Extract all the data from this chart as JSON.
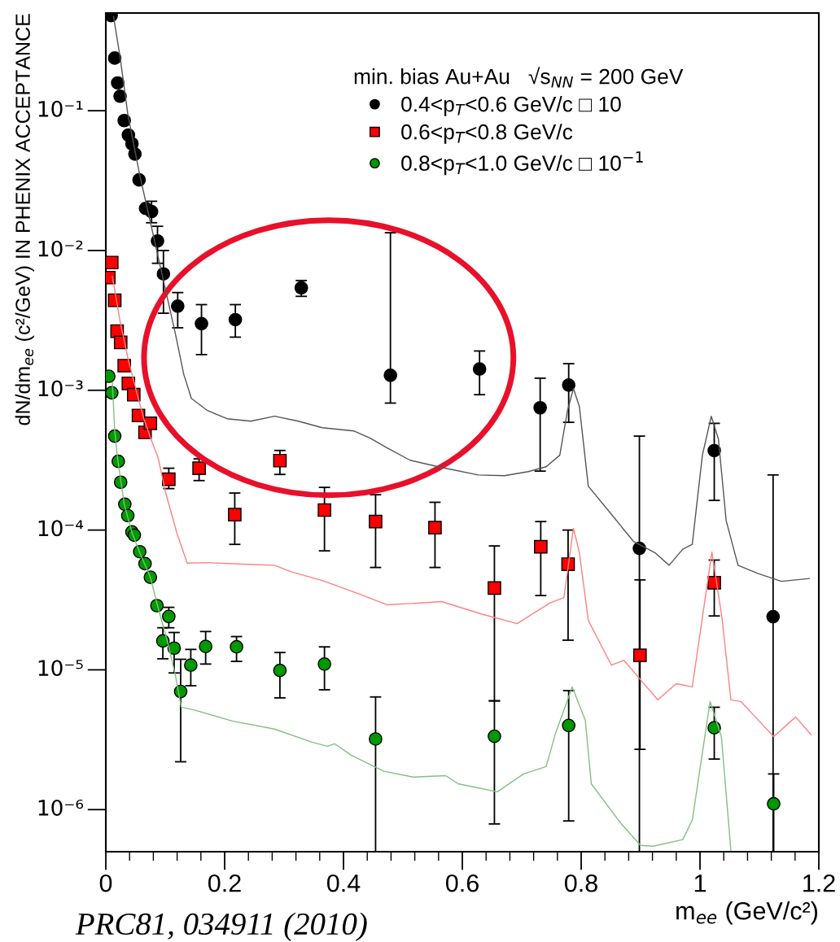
{
  "chart_data": {
    "type": "scatter",
    "xlabel": "m$_{ee}$ (GeV/c²)",
    "ylabel": "dN/dm$_{ee}$ (c²/GeV) IN PHENIX ACCEPTANCE",
    "legend_title": "min. bias Au+Au   √s$_{NN}$ = 200 GeV",
    "annotations": [
      "PRC81, 034911 (2010)"
    ],
    "log": "y",
    "grid": false,
    "legend": "top right",
    "xlim": [
      0,
      1.2
    ],
    "xticks": [
      0,
      0.2,
      0.4,
      0.6,
      0.8,
      1,
      1.2
    ],
    "ylim": [
      5e-07,
      0.5
    ],
    "yticks": [
      {
        "value": 1e-06,
        "label": "10⁻⁶"
      },
      {
        "value": 1e-05,
        "label": "10⁻⁵"
      },
      {
        "value": 0.0001,
        "label": "10⁻⁴"
      },
      {
        "value": 0.001,
        "label": "10⁻³"
      },
      {
        "value": 0.01,
        "label": "10⁻²"
      },
      {
        "value": 0.1,
        "label": "10⁻¹"
      }
    ],
    "series": [
      {
        "type": "line",
        "color": "#555555",
        "line_style": "solid",
        "x": [
          0.013,
          0.024,
          0.037,
          0.057,
          0.077,
          0.097,
          0.117,
          0.131,
          0.144,
          0.171,
          0.204,
          0.244,
          0.284,
          0.324,
          0.364,
          0.417,
          0.445,
          0.471,
          0.512,
          0.564,
          0.627,
          0.671,
          0.711,
          0.741,
          0.764,
          0.777,
          0.787,
          0.797,
          0.812,
          0.856,
          0.888,
          0.924,
          0.948,
          0.971,
          0.987,
          1.004,
          1.019,
          1.031,
          1.044,
          1.064,
          1.097,
          1.137,
          1.184
        ],
        "values": [
          0.472,
          0.242,
          0.0948,
          0.0348,
          0.0146,
          0.0061,
          0.00255,
          0.00131,
          0.000875,
          0.000716,
          0.000626,
          0.000601,
          0.000652,
          0.000601,
          0.00054,
          0.000512,
          0.000454,
          0.000392,
          0.000316,
          0.000281,
          0.000248,
          0.000245,
          0.000262,
          0.000284,
          0.000343,
          0.000716,
          0.00103,
          0.000765,
          0.000206,
          0.000122,
          8.3e-05,
          6.9e-05,
          5.6e-05,
          7.3e-05,
          7.9e-05,
          0.000343,
          0.000652,
          0.000448,
          0.000117,
          5.6e-05,
          4.9e-05,
          4.3e-05,
          4.5e-05
        ]
      },
      {
        "type": "line",
        "color": "#ff8080",
        "line_style": "solid",
        "x": [
          0.011,
          0.024,
          0.037,
          0.051,
          0.064,
          0.076,
          0.088,
          0.101,
          0.12,
          0.137,
          0.168,
          0.231,
          0.284,
          0.311,
          0.364,
          0.417,
          0.473,
          0.524,
          0.565,
          0.631,
          0.692,
          0.747,
          0.771,
          0.787,
          0.797,
          0.812,
          0.851,
          0.872,
          0.904,
          0.929,
          0.96,
          0.987,
          1.004,
          1.02,
          1.037,
          1.052,
          1.069,
          1.097,
          1.124,
          1.161,
          1.187
        ],
        "values": [
          0.00652,
          0.00312,
          0.00171,
          0.001,
          0.000626,
          0.000448,
          0.000329,
          0.000183,
          9.4e-05,
          5.8e-05,
          5.85e-05,
          5.7e-05,
          5.6e-05,
          5.05e-05,
          4.36e-05,
          3.61e-05,
          2.92e-05,
          3e-05,
          3.08e-05,
          2.52e-05,
          2.14e-05,
          3e-05,
          3.29e-05,
          0.000103,
          6.9e-05,
          2.26e-05,
          1.08e-05,
          1.17e-05,
          8.1e-06,
          6.1e-06,
          7.96e-06,
          7.55e-06,
          2.36e-05,
          6.97e-05,
          2.36e-05,
          6.1e-06,
          5.93e-06,
          4.42e-06,
          3.33e-06,
          4.6e-06,
          3.43e-06
        ]
      },
      {
        "type": "line",
        "color": "#80c080",
        "line_style": "solid",
        "x": [
          0.011,
          0.015,
          0.02,
          0.031,
          0.044,
          0.057,
          0.075,
          0.087,
          0.104,
          0.117,
          0.127,
          0.147,
          0.213,
          0.284,
          0.347,
          0.373,
          0.385,
          0.413,
          0.468,
          0.517,
          0.572,
          0.593,
          0.659,
          0.703,
          0.741,
          0.757,
          0.785,
          0.807,
          0.817,
          0.867,
          0.9,
          0.921,
          0.971,
          0.987,
          1.017,
          1.036,
          1.052
        ],
        "values": [
          0.00114,
          0.000512,
          0.000321,
          0.000153,
          9.6e-05,
          6.9e-05,
          4.6e-05,
          2.88e-05,
          1.58e-05,
          9.2e-06,
          5.4e-06,
          5.19e-06,
          4.3e-06,
          3.77e-06,
          3.04e-06,
          2.84e-06,
          2.96e-06,
          2.45e-06,
          1.88e-06,
          1.71e-06,
          1.75e-06,
          1.53e-06,
          1.34e-06,
          1.8e-06,
          2.03e-06,
          3.52e-06,
          7.55e-06,
          4.36e-06,
          1.53e-06,
          7.96e-07,
          5.55e-07,
          5.47e-07,
          6.1e-07,
          8.4e-07,
          5.93e-06,
          3.33e-06,
          5.1e-07
        ]
      },
      {
        "name": "0.4<p$_{T}$<0.6 GeV/c □ 10",
        "color": "#000000",
        "marker": "circle",
        "x": [
          0.009,
          0.015,
          0.02,
          0.024,
          0.031,
          0.038,
          0.044,
          0.049,
          0.056,
          0.067,
          0.077,
          0.087,
          0.097,
          0.121,
          0.161,
          0.218,
          0.329,
          0.479,
          0.629,
          0.731,
          0.779,
          0.898,
          1.024,
          1.123
        ],
        "values": [
          0.48,
          0.238,
          0.158,
          0.127,
          0.085,
          0.067,
          0.058,
          0.049,
          0.032,
          0.02,
          0.019,
          0.0117,
          0.0068,
          0.004,
          0.003,
          0.0032,
          0.0054,
          0.00128,
          0.00142,
          0.00075,
          0.00109,
          7.4e-05,
          0.00037,
          2.4e-05
        ],
        "errors": [
          null,
          null,
          null,
          null,
          null,
          null,
          null,
          null,
          null,
          null,
          [
            0.0158,
            0.0225
          ],
          [
            0.0081,
            0.0149
          ],
          [
            0.00356,
            0.01
          ],
          [
            0.0028,
            0.005
          ],
          [
            0.0018,
            0.0041
          ],
          [
            0.0024,
            0.0041
          ],
          [
            0.0047,
            0.0061
          ],
          [
            0.00081,
            0.0134
          ],
          [
            0.00093,
            0.00191
          ],
          [
            0.000264,
            0.00122
          ],
          [
            0.00059,
            0.00155
          ],
          [
            5e-07,
            0.00047
          ],
          [
            0.000163,
            0.00058
          ],
          [
            5e-07,
            0.000248
          ]
        ]
      },
      {
        "name": "0.6<p$_{T}$<0.8 GeV/c",
        "color": "#ff0000",
        "marker": "square",
        "x": [
          0.005,
          0.01,
          0.015,
          0.019,
          0.025,
          0.031,
          0.038,
          0.047,
          0.055,
          0.066,
          0.075,
          0.106,
          0.157,
          0.217,
          0.293,
          0.368,
          0.454,
          0.554,
          0.654,
          0.732,
          0.778,
          0.899,
          1.024
        ],
        "values": [
          0.0064,
          0.0082,
          0.0044,
          0.00265,
          0.0022,
          0.0015,
          0.00112,
          0.00093,
          0.00066,
          0.0005,
          0.00058,
          0.000231,
          0.000277,
          0.000129,
          0.000314,
          0.000139,
          0.000115,
          0.000104,
          3.85e-05,
          7.6e-05,
          5.7e-05,
          1.27e-05,
          4.2e-05
        ],
        "errors": [
          null,
          null,
          null,
          null,
          null,
          null,
          null,
          null,
          null,
          null,
          null,
          [
            0.000198,
            0.000277
          ],
          [
            0.000226,
            0.000323
          ],
          [
            7.9e-05,
            0.000184
          ],
          [
            0.00025,
            0.000371
          ],
          [
            7.1e-05,
            0.000202
          ],
          [
            5.4e-05,
            0.000179
          ],
          [
            5.4e-05,
            0.000158
          ],
          [
            6e-06,
            7.7e-05
          ],
          [
            3.4e-05,
            0.000115
          ],
          [
            1.63e-05,
            0.0001
          ],
          [
            2.7e-06,
            4.4e-05
          ],
          [
            2.43e-05,
            6.1e-05
          ]
        ]
      },
      {
        "name": "0.8<p$_{T}$<1.0 GeV/c □ 10$^{−1}$",
        "color": "#009900",
        "marker": "circle",
        "x": [
          0.005,
          0.01,
          0.015,
          0.021,
          0.025,
          0.032,
          0.037,
          0.044,
          0.048,
          0.057,
          0.066,
          0.075,
          0.086,
          0.096,
          0.106,
          0.115,
          0.126,
          0.143,
          0.168,
          0.22,
          0.293,
          0.368,
          0.454,
          0.654,
          0.779,
          1.024,
          1.124
        ],
        "values": [
          0.00126,
          0.00096,
          0.00047,
          0.00031,
          0.00022,
          0.000153,
          0.000127,
          9.7e-05,
          9.2e-05,
          7e-05,
          5.75e-05,
          4.6e-05,
          2.88e-05,
          1.61e-05,
          2.41e-05,
          1.43e-05,
          7e-06,
          1.08e-05,
          1.47e-05,
          1.46e-05,
          9.9e-06,
          1.1e-05,
          3.2e-06,
          3.35e-06,
          4e-06,
          3.85e-06,
          1.1e-06
        ],
        "errors": [
          null,
          null,
          null,
          null,
          null,
          null,
          null,
          null,
          null,
          null,
          null,
          null,
          null,
          [
            1.2e-05,
            2e-05
          ],
          [
            2e-05,
            2.8e-05
          ],
          [
            9.5e-06,
            1.85e-05
          ],
          [
            2.2e-06,
            1.19e-05
          ],
          [
            7.7e-06,
            1.4e-05
          ],
          [
            1.1e-05,
            1.88e-05
          ],
          [
            1.15e-05,
            1.73e-05
          ],
          [
            6.3e-06,
            1.33e-05
          ],
          [
            7.2e-06,
            1.46e-05
          ],
          [
            5e-07,
            6.4e-06
          ],
          [
            7.9e-07,
            6e-06
          ],
          [
            8.3e-07,
            7.1e-06
          ],
          [
            2.3e-06,
            5.4e-06
          ],
          [
            5e-07,
            1.8e-06
          ]
        ]
      }
    ]
  }
}
